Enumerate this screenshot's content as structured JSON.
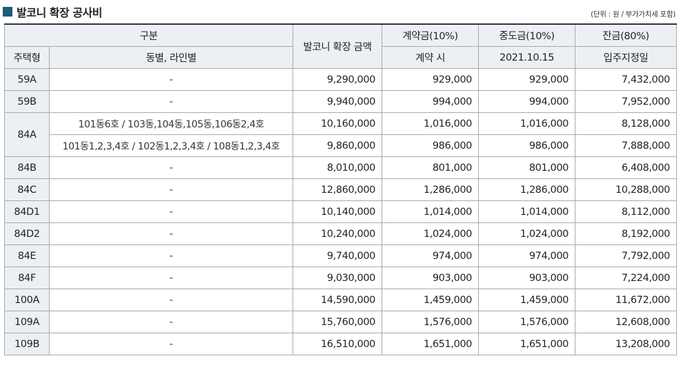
{
  "title": "발코니 확장 공사비",
  "unit_note": "(단위 : 원 / 부가가치세 포함)",
  "header": {
    "group": "구분",
    "type": "주택형",
    "line": "동별, 라인별",
    "amount": "발코니 확장 금액",
    "contract": "계약금(10%)",
    "contract_date": "계약 시",
    "middle": "중도금(10%)",
    "middle_date": "2021.10.15",
    "balance": "잔금(80%)",
    "balance_date": "입주지정일"
  },
  "rows": [
    {
      "type": "59A",
      "line": "-",
      "amount": "9,290,000",
      "contract": "929,000",
      "middle": "929,000",
      "balance": "7,432,000"
    },
    {
      "type": "59B",
      "line": "-",
      "amount": "9,940,000",
      "contract": "994,000",
      "middle": "994,000",
      "balance": "7,952,000"
    },
    {
      "type": "84A",
      "line": "101동6호 / 103동,104동,105동,106동2,4호",
      "amount": "10,160,000",
      "contract": "1,016,000",
      "middle": "1,016,000",
      "balance": "8,128,000"
    },
    {
      "type": "84A",
      "line": "101동1,2,3,4호 / 102동1,2,3,4호 / 108동1,2,3,4호",
      "amount": "9,860,000",
      "contract": "986,000",
      "middle": "986,000",
      "balance": "7,888,000"
    },
    {
      "type": "84B",
      "line": "-",
      "amount": "8,010,000",
      "contract": "801,000",
      "middle": "801,000",
      "balance": "6,408,000"
    },
    {
      "type": "84C",
      "line": "-",
      "amount": "12,860,000",
      "contract": "1,286,000",
      "middle": "1,286,000",
      "balance": "10,288,000"
    },
    {
      "type": "84D1",
      "line": "-",
      "amount": "10,140,000",
      "contract": "1,014,000",
      "middle": "1,014,000",
      "balance": "8,112,000"
    },
    {
      "type": "84D2",
      "line": "-",
      "amount": "10,240,000",
      "contract": "1,024,000",
      "middle": "1,024,000",
      "balance": "8,192,000"
    },
    {
      "type": "84E",
      "line": "-",
      "amount": "9,740,000",
      "contract": "974,000",
      "middle": "974,000",
      "balance": "7,792,000"
    },
    {
      "type": "84F",
      "line": "-",
      "amount": "9,030,000",
      "contract": "903,000",
      "middle": "903,000",
      "balance": "7,224,000"
    },
    {
      "type": "100A",
      "line": "-",
      "amount": "14,590,000",
      "contract": "1,459,000",
      "middle": "1,459,000",
      "balance": "11,672,000"
    },
    {
      "type": "109A",
      "line": "-",
      "amount": "15,760,000",
      "contract": "1,576,000",
      "middle": "1,576,000",
      "balance": "12,608,000"
    },
    {
      "type": "109B",
      "line": "-",
      "amount": "16,510,000",
      "contract": "1,651,000",
      "middle": "1,651,000",
      "balance": "13,208,000"
    }
  ]
}
